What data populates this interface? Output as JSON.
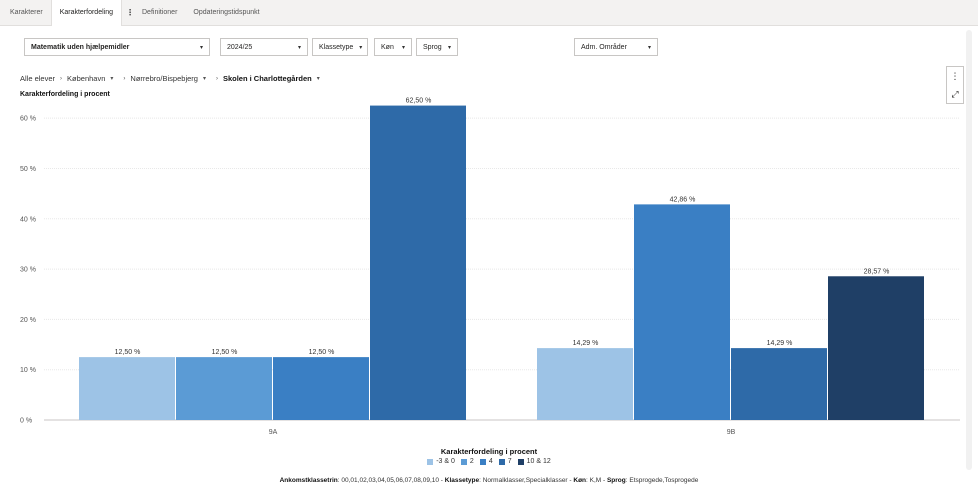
{
  "tabs": [
    {
      "label": "Karakterer"
    },
    {
      "label": "Karakterfordeling"
    },
    {
      "label": "Definitioner"
    },
    {
      "label": "Opdateringstidspunkt"
    }
  ],
  "filters": {
    "subject": "Matematik uden hjælpemidler",
    "year": "2024/25",
    "class_type": "Klassetype",
    "gender": "Køn",
    "language": "Sprog",
    "area": "Adm. Områder"
  },
  "breadcrumb": {
    "all": "Alle elever",
    "city": "København",
    "district": "Nørrebro/Bispebjerg",
    "school": "Skolen i Charlottegården"
  },
  "visual_title": "Karakterfordeling i procent",
  "chart_data": {
    "type": "bar",
    "title": "Karakterfordeling i procent",
    "categories": [
      "9A",
      "9B"
    ],
    "ylim": [
      0,
      65
    ],
    "yticks": [
      0,
      10,
      20,
      30,
      40,
      50,
      60
    ],
    "ytick_labels": [
      "0 %",
      "10 %",
      "20 %",
      "30 %",
      "40 %",
      "50 %",
      "60 %"
    ],
    "grid": true,
    "legend_title": "Karakterfordeling i procent",
    "legend_position": "bottom-center",
    "series": [
      {
        "name": "-3 & 0",
        "color": "#9dc3e6",
        "values": [
          12.5,
          14.29
        ],
        "labels": [
          "12,50 %",
          "14,29 %"
        ]
      },
      {
        "name": "2",
        "color": "#5b9bd5",
        "values": [
          12.5,
          null
        ],
        "labels": [
          "12,50 %",
          ""
        ]
      },
      {
        "name": "4",
        "color": "#3a7fc4",
        "values": [
          12.5,
          42.86
        ],
        "labels": [
          "12,50 %",
          "42,86 %"
        ]
      },
      {
        "name": "7",
        "color": "#2e6aa8",
        "values": [
          62.5,
          14.29
        ],
        "labels": [
          "62,50 %",
          "14,29 %"
        ]
      },
      {
        "name": "10 & 12",
        "color": "#1f3f66",
        "values": [
          null,
          28.57
        ],
        "labels": [
          "",
          "28,57 %"
        ]
      }
    ]
  },
  "footnote": {
    "k1": "Ankomstklassetrin",
    "v1": ": 00,01,02,03,04,05,06,07,08,09,10 - ",
    "k2": "Klassetype",
    "v2": ": Normalklasser,Specialklasser  - ",
    "k3": "Køn",
    "v3": ": K,M  - ",
    "k4": "Sprog",
    "v4": ": Etsprogede,Tosprogede"
  },
  "icons": {
    "more": "more-vertical-icon",
    "expand": "expand-icon",
    "chevron": "chevron-down-icon"
  }
}
